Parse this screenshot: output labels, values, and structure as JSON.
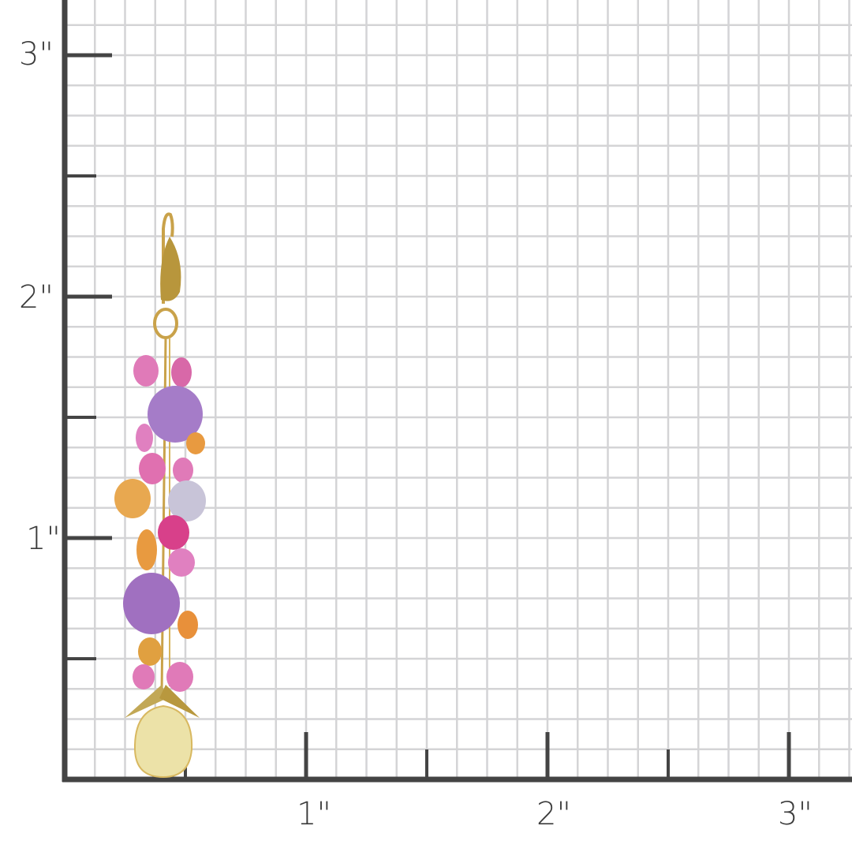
{
  "ruler": {
    "unit": "inch",
    "y_labels": [
      "1\"",
      "2\"",
      "3\""
    ],
    "x_labels": [
      "1\"",
      "2\"",
      "3\""
    ],
    "subdivisions_per_inch": 8,
    "axis_color": "#444444",
    "grid_color": "#d4d4d6"
  },
  "product": {
    "subject": "gemstone cluster drop earring",
    "colors": {
      "gold": "#c9a24a",
      "pink": "#e070b0",
      "purple": "#a57cc8",
      "orange": "#e89a40",
      "citrine": "#e8dca0"
    }
  }
}
